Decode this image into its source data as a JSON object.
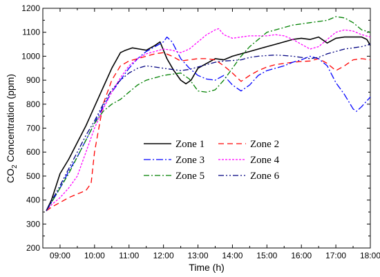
{
  "chart_data": {
    "type": "line",
    "xlabel": "Time (h)",
    "ylabel": {
      "pre": "CO",
      "sub": "2",
      "post": " Concentration (ppm)"
    },
    "xlim": [
      8.5,
      18.0
    ],
    "ylim": [
      200,
      1200
    ],
    "xticks": [
      9,
      10,
      11,
      12,
      13,
      14,
      15,
      16,
      17,
      18
    ],
    "xtick_labels": [
      "09:00",
      "10:00",
      "11:00",
      "12:00",
      "13:00",
      "14:00",
      "15:00",
      "16:00",
      "17:00",
      "18:00"
    ],
    "yticks": [
      200,
      300,
      400,
      500,
      600,
      700,
      800,
      900,
      1000,
      1100,
      1200
    ],
    "ytick_labels": [
      "200",
      "300",
      "400",
      "500",
      "600",
      "700",
      "800",
      "900",
      "1000",
      "1100",
      "1200"
    ],
    "legend_position": "center",
    "series": [
      {
        "name": "Zone 1",
        "color": "#000000",
        "dash": "solid",
        "x": [
          8.6,
          8.75,
          9.0,
          9.25,
          9.5,
          9.75,
          10.0,
          10.25,
          10.5,
          10.75,
          10.9,
          11.1,
          11.3,
          11.5,
          11.75,
          11.9,
          12.1,
          12.3,
          12.5,
          12.65,
          12.8,
          13.0,
          13.25,
          13.5,
          13.75,
          14.0,
          14.25,
          14.5,
          14.75,
          15.0,
          15.25,
          15.5,
          15.75,
          16.0,
          16.25,
          16.5,
          16.75,
          17.0,
          17.25,
          17.5,
          17.75,
          17.9,
          18.0
        ],
        "y": [
          355,
          400,
          510,
          570,
          640,
          710,
          790,
          870,
          950,
          1015,
          1025,
          1035,
          1030,
          1025,
          1045,
          1060,
          990,
          940,
          900,
          885,
          900,
          950,
          970,
          990,
          985,
          1000,
          1010,
          1020,
          1030,
          1040,
          1050,
          1060,
          1070,
          1075,
          1070,
          1080,
          1055,
          1075,
          1080,
          1080,
          1080,
          1070,
          1045
        ]
      },
      {
        "name": "Zone 2",
        "color": "#ff0000",
        "dash": "8 5",
        "x": [
          8.6,
          8.75,
          9.0,
          9.25,
          9.5,
          9.75,
          9.9,
          10.0,
          10.25,
          10.5,
          10.75,
          11.0,
          11.25,
          11.5,
          11.75,
          12.0,
          12.25,
          12.5,
          12.75,
          13.0,
          13.25,
          13.5,
          13.75,
          14.0,
          14.25,
          14.5,
          14.75,
          15.0,
          15.25,
          15.5,
          15.75,
          16.0,
          16.25,
          16.5,
          16.75,
          17.0,
          17.25,
          17.5,
          17.75,
          18.0
        ],
        "y": [
          355,
          370,
          390,
          410,
          425,
          440,
          470,
          600,
          800,
          900,
          960,
          980,
          990,
          1000,
          1010,
          1015,
          1000,
          980,
          985,
          990,
          990,
          985,
          960,
          930,
          895,
          920,
          940,
          955,
          965,
          970,
          975,
          978,
          980,
          990,
          970,
          940,
          960,
          985,
          990,
          985
        ]
      },
      {
        "name": "Zone 3",
        "color": "#0000ff",
        "dash": "10 3 2 3",
        "x": [
          8.6,
          8.75,
          9.0,
          9.25,
          9.5,
          9.75,
          10.0,
          10.25,
          10.5,
          10.75,
          11.0,
          11.25,
          11.5,
          11.75,
          12.0,
          12.1,
          12.25,
          12.5,
          12.75,
          13.0,
          13.25,
          13.5,
          13.75,
          14.0,
          14.25,
          14.5,
          14.75,
          15.0,
          15.25,
          15.5,
          15.75,
          16.0,
          16.25,
          16.5,
          16.75,
          17.0,
          17.25,
          17.5,
          17.6,
          17.75,
          18.0
        ],
        "y": [
          355,
          390,
          450,
          520,
          580,
          650,
          720,
          790,
          850,
          900,
          950,
          990,
          1020,
          1040,
          1060,
          1080,
          1060,
          990,
          950,
          920,
          905,
          900,
          920,
          880,
          855,
          880,
          920,
          940,
          950,
          960,
          975,
          985,
          1000,
          990,
          960,
          890,
          840,
          780,
          770,
          790,
          830
        ]
      },
      {
        "name": "Zone 4",
        "color": "#ff00ff",
        "dash": "3 2",
        "x": [
          8.6,
          8.75,
          9.0,
          9.25,
          9.5,
          9.75,
          10.0,
          10.25,
          10.5,
          10.75,
          11.0,
          11.25,
          11.5,
          11.75,
          12.0,
          12.25,
          12.5,
          12.75,
          13.0,
          13.25,
          13.5,
          13.6,
          13.75,
          14.0,
          14.25,
          14.5,
          14.75,
          15.0,
          15.25,
          15.5,
          15.75,
          16.0,
          16.25,
          16.5,
          16.75,
          17.0,
          17.25,
          17.5,
          17.75,
          18.0
        ],
        "y": [
          355,
          380,
          410,
          450,
          500,
          600,
          700,
          780,
          850,
          910,
          960,
          990,
          1010,
          1020,
          1030,
          1025,
          1015,
          1030,
          1060,
          1090,
          1110,
          1115,
          1090,
          1075,
          1080,
          1085,
          1085,
          1085,
          1090,
          1085,
          1070,
          1050,
          1030,
          1040,
          1070,
          1100,
          1110,
          1105,
          1090,
          1080
        ]
      },
      {
        "name": "Zone 5",
        "color": "#008000",
        "dash": "8 3 2 3",
        "x": [
          8.6,
          8.75,
          9.0,
          9.25,
          9.5,
          9.75,
          10.0,
          10.25,
          10.5,
          10.75,
          11.0,
          11.25,
          11.5,
          11.75,
          12.0,
          12.25,
          12.5,
          12.75,
          13.0,
          13.25,
          13.5,
          13.75,
          14.0,
          14.25,
          14.5,
          14.75,
          15.0,
          15.25,
          15.5,
          15.75,
          16.0,
          16.25,
          16.5,
          16.75,
          17.0,
          17.25,
          17.5,
          17.75,
          18.0
        ],
        "y": [
          355,
          390,
          450,
          510,
          580,
          650,
          720,
          770,
          800,
          820,
          850,
          880,
          900,
          910,
          920,
          925,
          930,
          905,
          855,
          850,
          860,
          900,
          950,
          1000,
          1040,
          1070,
          1100,
          1110,
          1120,
          1130,
          1135,
          1140,
          1145,
          1150,
          1165,
          1160,
          1140,
          1110,
          1100
        ]
      },
      {
        "name": "Zone 6",
        "color": "#000080",
        "dash": "8 3 2 3 2 3",
        "x": [
          8.6,
          8.75,
          9.0,
          9.25,
          9.5,
          9.75,
          10.0,
          10.25,
          10.5,
          10.75,
          11.0,
          11.25,
          11.5,
          11.75,
          12.0,
          12.25,
          12.5,
          12.75,
          13.0,
          13.25,
          13.5,
          13.75,
          14.0,
          14.25,
          14.5,
          14.75,
          15.0,
          15.25,
          15.5,
          15.75,
          16.0,
          16.25,
          16.5,
          16.75,
          17.0,
          17.25,
          17.5,
          17.75,
          18.0
        ],
        "y": [
          355,
          395,
          460,
          530,
          600,
          670,
          730,
          800,
          860,
          900,
          930,
          950,
          960,
          955,
          950,
          945,
          940,
          945,
          955,
          965,
          975,
          980,
          982,
          985,
          995,
          1000,
          1003,
          1005,
          1003,
          1000,
          995,
          990,
          995,
          1010,
          1020,
          1030,
          1035,
          1040,
          1050
        ]
      }
    ]
  }
}
